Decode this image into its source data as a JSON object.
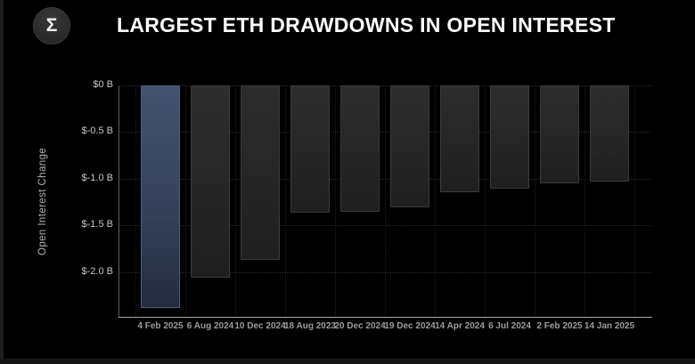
{
  "header": {
    "title": "LARGEST ETH DRAWDOWNS IN OPEN INTEREST",
    "logo_symbol": "Σ"
  },
  "chart_data": {
    "type": "bar",
    "title": "LARGEST ETH DRAWDOWNS IN OPEN INTEREST",
    "xlabel": "",
    "ylabel": "Open Interest Change",
    "categories": [
      "4 Feb 2025",
      "6 Aug 2024",
      "10 Dec 2024",
      "18 Aug 2023",
      "20 Dec 2024",
      "19 Dec 2024",
      "14 Apr 2024",
      "6 Jul 2024",
      "2 Feb 2025",
      "14 Jan 2025"
    ],
    "values": [
      -2.38,
      -2.06,
      -1.87,
      -1.36,
      -1.35,
      -1.31,
      -1.14,
      -1.11,
      -1.05,
      -1.03
    ],
    "value_unit": "billions USD",
    "ylim": [
      -2.48,
      0
    ],
    "yticks": [
      0,
      -0.5,
      -1.0,
      -1.5,
      -2.0
    ],
    "ytick_labels": [
      "$0 B",
      "$-0.5 B",
      "$-1.0 B",
      "$-1.5 B",
      "$-2.0 B"
    ],
    "grid": true,
    "legend": false,
    "highlight_index": 0,
    "colors": {
      "background": "#000000",
      "bar_top": "#2d2d2d",
      "bar_bottom": "#1f1f1f",
      "bar_border": "#3b3b3b",
      "highlight_top": "#43526d",
      "highlight_bottom": "#242c3e",
      "highlight_border": "#51607b",
      "axis_line": "#a3a3a3",
      "grid_line": "#2d2d2d",
      "title_text": "#ffffff",
      "tick_text": "#c7c7c7",
      "category_text": "#9c9c9c"
    }
  }
}
